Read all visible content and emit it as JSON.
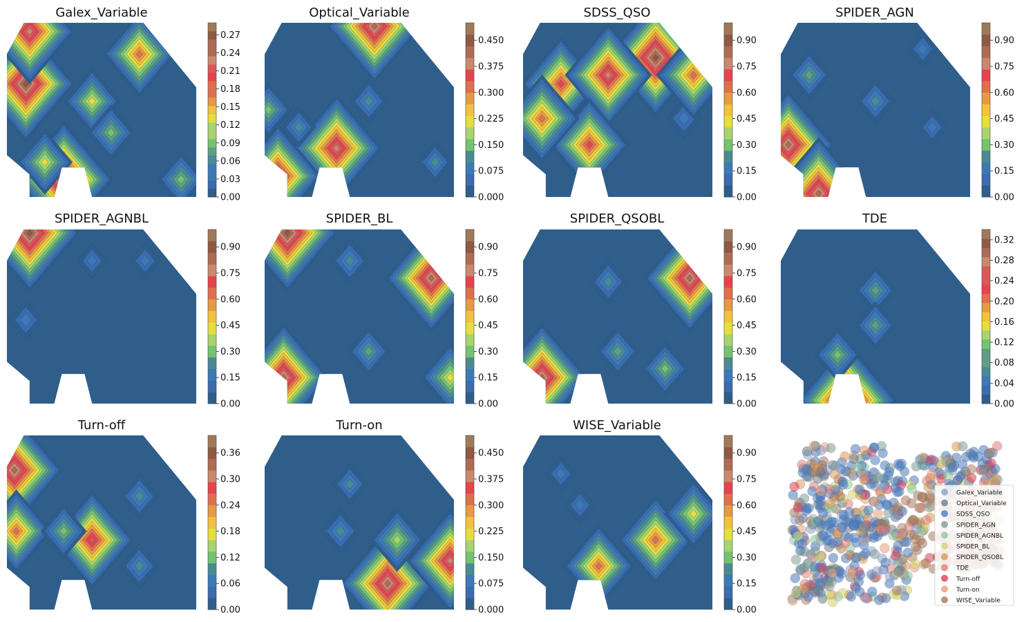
{
  "figure_title": "",
  "colors": {
    "palette": [
      "#2f5e8a",
      "#3a6cb0",
      "#3c7ab6",
      "#4a8a93",
      "#5f9e84",
      "#73c36f",
      "#a8d36e",
      "#e7de3c",
      "#f2c23c",
      "#e69a44",
      "#e06f4c",
      "#e6434f",
      "#d9585a",
      "#c88a6b",
      "#b06a55",
      "#8e5a43",
      "#a07a58"
    ],
    "region_base": "#2f5e8a",
    "scatter_series": [
      "#8ea3cb",
      "#6d7f86",
      "#4d7bbf",
      "#7f9e97",
      "#8dc7a2",
      "#d4d36a",
      "#d79a5a",
      "#e57d7b",
      "#df3f56",
      "#e6a07a",
      "#a77a5e",
      "#b5835f"
    ]
  },
  "chart_data": [
    {
      "type": "heatmap",
      "title": "Galex_Variable",
      "colorbar": {
        "min": 0.0,
        "max": 0.29,
        "ticks": [
          "0.00",
          "0.03",
          "0.06",
          "0.09",
          "0.12",
          "0.15",
          "0.18",
          "0.21",
          "0.24",
          "0.27"
        ],
        "tick_values": [
          0,
          0.03,
          0.06,
          0.09,
          0.12,
          0.15,
          0.18,
          0.21,
          0.24,
          0.27
        ]
      },
      "hotspots": [
        {
          "x": 0.1,
          "y": 0.35,
          "value": 0.27
        },
        {
          "x": 0.12,
          "y": 0.05,
          "value": 0.24
        },
        {
          "x": 0.7,
          "y": 0.18,
          "value": 0.18
        },
        {
          "x": 0.45,
          "y": 0.45,
          "value": 0.12
        },
        {
          "x": 0.55,
          "y": 0.63,
          "value": 0.09
        },
        {
          "x": 0.3,
          "y": 0.9,
          "value": 0.27
        },
        {
          "x": 0.92,
          "y": 0.9,
          "value": 0.09
        },
        {
          "x": 0.2,
          "y": 0.8,
          "value": 0.12
        }
      ]
    },
    {
      "type": "heatmap",
      "title": "Optical_Variable",
      "colorbar": {
        "min": 0.0,
        "max": 0.5,
        "ticks": [
          "0.000",
          "0.075",
          "0.150",
          "0.225",
          "0.300",
          "0.375",
          "0.450"
        ],
        "tick_values": [
          0,
          0.075,
          0.15,
          0.225,
          0.3,
          0.375,
          0.45
        ]
      },
      "hotspots": [
        {
          "x": 0.38,
          "y": 0.72,
          "value": 0.42
        },
        {
          "x": 0.58,
          "y": 0.02,
          "value": 0.45
        },
        {
          "x": 0.07,
          "y": 0.88,
          "value": 0.4
        },
        {
          "x": 0.18,
          "y": 0.6,
          "value": 0.08
        },
        {
          "x": 0.55,
          "y": 0.45,
          "value": 0.1
        },
        {
          "x": 0.9,
          "y": 0.8,
          "value": 0.08
        },
        {
          "x": 0.02,
          "y": 0.5,
          "value": 0.15
        }
      ]
    },
    {
      "type": "heatmap",
      "title": "SDSS_QSO",
      "colorbar": {
        "min": 0.0,
        "max": 1.0,
        "ticks": [
          "0.00",
          "0.15",
          "0.30",
          "0.45",
          "0.60",
          "0.75",
          "0.90"
        ],
        "tick_values": [
          0,
          0.15,
          0.3,
          0.45,
          0.6,
          0.75,
          0.9
        ]
      },
      "hotspots": [
        {
          "x": 0.2,
          "y": 0.35,
          "value": 0.7
        },
        {
          "x": 0.7,
          "y": 0.2,
          "value": 0.95
        },
        {
          "x": 0.45,
          "y": 0.3,
          "value": 0.8
        },
        {
          "x": 0.35,
          "y": 0.7,
          "value": 0.7
        },
        {
          "x": 0.1,
          "y": 0.55,
          "value": 0.65
        },
        {
          "x": 0.85,
          "y": 0.55,
          "value": 0.15
        },
        {
          "x": 0.9,
          "y": 0.3,
          "value": 0.65
        }
      ]
    },
    {
      "type": "heatmap",
      "title": "SPIDER_AGN",
      "colorbar": {
        "min": 0.0,
        "max": 1.0,
        "ticks": [
          "0.00",
          "0.15",
          "0.30",
          "0.45",
          "0.60",
          "0.75",
          "0.90"
        ],
        "tick_values": [
          0,
          0.15,
          0.3,
          0.45,
          0.6,
          0.75,
          0.9
        ]
      },
      "hotspots": [
        {
          "x": 0.15,
          "y": 0.3,
          "value": 0.25
        },
        {
          "x": 0.5,
          "y": 0.45,
          "value": 0.2
        },
        {
          "x": 0.04,
          "y": 0.7,
          "value": 0.85
        },
        {
          "x": 0.2,
          "y": 0.98,
          "value": 0.9
        },
        {
          "x": 0.75,
          "y": 0.15,
          "value": 0.1
        },
        {
          "x": 0.8,
          "y": 0.6,
          "value": 0.1
        }
      ]
    },
    {
      "type": "heatmap",
      "title": "SPIDER_AGNBL",
      "colorbar": {
        "min": 0.0,
        "max": 1.0,
        "ticks": [
          "0.00",
          "0.15",
          "0.30",
          "0.45",
          "0.60",
          "0.75",
          "0.90"
        ],
        "tick_values": [
          0,
          0.15,
          0.3,
          0.45,
          0.6,
          0.75,
          0.9
        ]
      },
      "hotspots": [
        {
          "x": 0.12,
          "y": 0.02,
          "value": 0.95
        },
        {
          "x": 0.1,
          "y": 0.52,
          "value": 0.15
        },
        {
          "x": 0.45,
          "y": 0.18,
          "value": 0.1
        },
        {
          "x": 0.73,
          "y": 0.18,
          "value": 0.1
        }
      ]
    },
    {
      "type": "heatmap",
      "title": "SPIDER_BL",
      "colorbar": {
        "min": 0.0,
        "max": 1.0,
        "ticks": [
          "0.00",
          "0.15",
          "0.30",
          "0.45",
          "0.60",
          "0.75",
          "0.90"
        ],
        "tick_values": [
          0,
          0.15,
          0.3,
          0.45,
          0.6,
          0.75,
          0.9
        ]
      },
      "hotspots": [
        {
          "x": 0.12,
          "y": 0.02,
          "value": 0.95
        },
        {
          "x": 0.88,
          "y": 0.28,
          "value": 0.85
        },
        {
          "x": 0.1,
          "y": 0.85,
          "value": 0.85
        },
        {
          "x": 0.45,
          "y": 0.18,
          "value": 0.2
        },
        {
          "x": 0.55,
          "y": 0.7,
          "value": 0.25
        },
        {
          "x": 0.98,
          "y": 0.85,
          "value": 0.45
        }
      ]
    },
    {
      "type": "heatmap",
      "title": "SPIDER_QSOBL",
      "colorbar": {
        "min": 0.0,
        "max": 1.0,
        "ticks": [
          "0.00",
          "0.15",
          "0.30",
          "0.45",
          "0.60",
          "0.75",
          "0.90"
        ],
        "tick_values": [
          0,
          0.15,
          0.3,
          0.45,
          0.6,
          0.75,
          0.9
        ]
      },
      "hotspots": [
        {
          "x": 0.88,
          "y": 0.28,
          "value": 0.85
        },
        {
          "x": 0.1,
          "y": 0.85,
          "value": 0.85
        },
        {
          "x": 0.45,
          "y": 0.3,
          "value": 0.2
        },
        {
          "x": 0.5,
          "y": 0.7,
          "value": 0.25
        },
        {
          "x": 0.75,
          "y": 0.8,
          "value": 0.3
        }
      ]
    },
    {
      "type": "heatmap",
      "title": "TDE",
      "colorbar": {
        "min": 0.0,
        "max": 0.34,
        "ticks": [
          "0.00",
          "0.04",
          "0.08",
          "0.12",
          "0.16",
          "0.20",
          "0.24",
          "0.28",
          "0.32"
        ],
        "tick_values": [
          0,
          0.04,
          0.08,
          0.12,
          0.16,
          0.2,
          0.24,
          0.28,
          0.32
        ]
      },
      "hotspots": [
        {
          "x": 0.35,
          "y": 0.98,
          "value": 0.32
        },
        {
          "x": 0.3,
          "y": 0.72,
          "value": 0.1
        },
        {
          "x": 0.5,
          "y": 0.35,
          "value": 0.08
        },
        {
          "x": 0.5,
          "y": 0.55,
          "value": 0.08
        }
      ]
    },
    {
      "type": "heatmap",
      "title": "Turn-off",
      "colorbar": {
        "min": 0.0,
        "max": 0.4,
        "ticks": [
          "0.00",
          "0.06",
          "0.12",
          "0.18",
          "0.24",
          "0.30",
          "0.36"
        ],
        "tick_values": [
          0,
          0.06,
          0.12,
          0.18,
          0.24,
          0.3,
          0.36
        ]
      },
      "hotspots": [
        {
          "x": 0.45,
          "y": 0.6,
          "value": 0.3
        },
        {
          "x": 0.04,
          "y": 0.2,
          "value": 0.36
        },
        {
          "x": 0.05,
          "y": 0.55,
          "value": 0.24
        },
        {
          "x": 0.3,
          "y": 0.55,
          "value": 0.12
        },
        {
          "x": 0.7,
          "y": 0.35,
          "value": 0.08
        },
        {
          "x": 0.7,
          "y": 0.75,
          "value": 0.08
        }
      ]
    },
    {
      "type": "heatmap",
      "title": "Turn-on",
      "colorbar": {
        "min": 0.0,
        "max": 0.5,
        "ticks": [
          "0.000",
          "0.075",
          "0.150",
          "0.225",
          "0.300",
          "0.375",
          "0.450"
        ],
        "tick_values": [
          0,
          0.075,
          0.15,
          0.225,
          0.3,
          0.375,
          0.45
        ]
      },
      "hotspots": [
        {
          "x": 0.65,
          "y": 0.85,
          "value": 0.45
        },
        {
          "x": 0.98,
          "y": 0.72,
          "value": 0.4
        },
        {
          "x": 0.7,
          "y": 0.6,
          "value": 0.2
        },
        {
          "x": 0.4,
          "y": 0.55,
          "value": 0.1
        },
        {
          "x": 0.45,
          "y": 0.28,
          "value": 0.08
        }
      ]
    },
    {
      "type": "heatmap",
      "title": "WISE_Variable",
      "colorbar": {
        "min": 0.0,
        "max": 1.0,
        "ticks": [
          "0.00",
          "0.15",
          "0.30",
          "0.45",
          "0.60",
          "0.75",
          "0.90"
        ],
        "tick_values": [
          0,
          0.15,
          0.3,
          0.45,
          0.6,
          0.75,
          0.9
        ]
      },
      "hotspots": [
        {
          "x": 0.7,
          "y": 0.6,
          "value": 0.65
        },
        {
          "x": 0.4,
          "y": 0.75,
          "value": 0.6
        },
        {
          "x": 0.9,
          "y": 0.45,
          "value": 0.45
        },
        {
          "x": 0.2,
          "y": 0.22,
          "value": 0.1
        },
        {
          "x": 0.3,
          "y": 0.4,
          "value": 0.1
        }
      ]
    },
    {
      "type": "scatter",
      "title": "",
      "legend": [
        "Galex_Variable",
        "Optical_Variable",
        "SDSS_QSO",
        "SPIDER_AGN",
        "SPIDER_AGNBL",
        "SPIDER_BL",
        "SPIDER_QSOBL",
        "TDE",
        "Turn-off",
        "Turn-on",
        "WISE_Variable"
      ],
      "legend_position": "right"
    }
  ]
}
